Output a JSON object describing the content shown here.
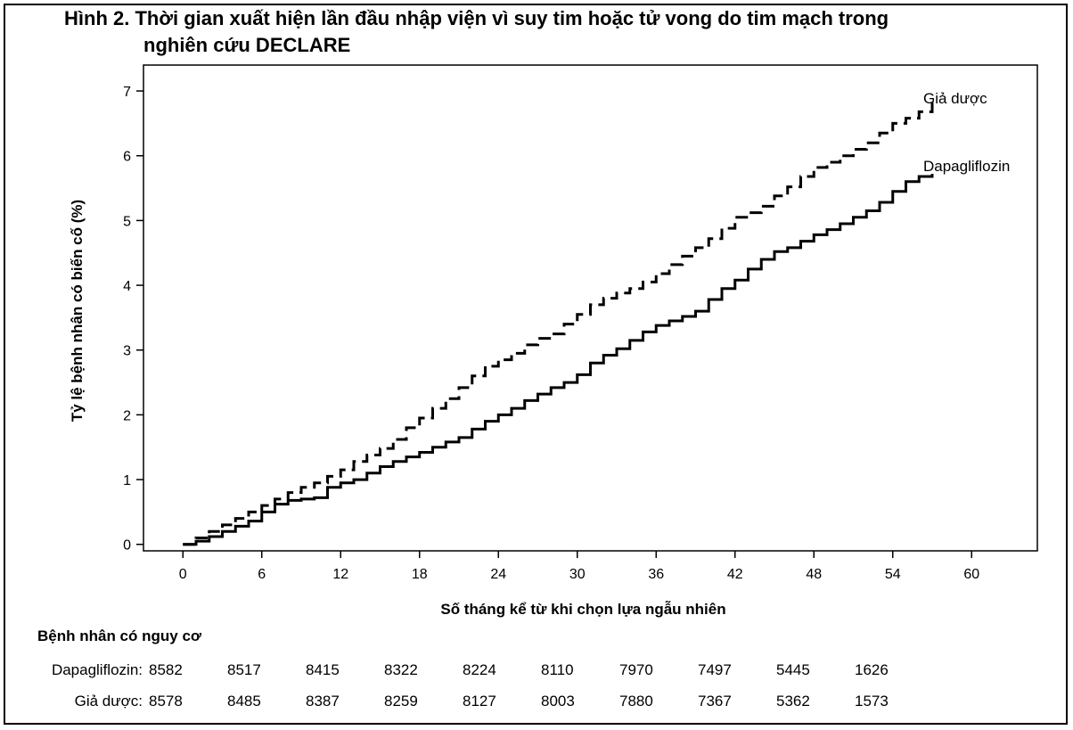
{
  "title_line1": "Hình 2. Thời gian xuất hiện lần đầu nhập viện vì suy tim hoặc tử vong do tim mạch trong",
  "title_line2": "nghiên cứu DECLARE",
  "chart_data": {
    "type": "line",
    "xlabel": "Số tháng kể từ khi chọn lựa ngẫu nhiên",
    "ylabel": "Tỷ lệ bệnh nhân có biến cố (%)",
    "xlim": [
      -3,
      65
    ],
    "ylim": [
      -0.1,
      7.4
    ],
    "x_ticks": [
      0,
      6,
      12,
      18,
      24,
      30,
      36,
      42,
      48,
      54,
      60
    ],
    "y_ticks": [
      0,
      1,
      2,
      3,
      4,
      5,
      6,
      7
    ],
    "grid": false,
    "legend": "labels at line ends",
    "series": [
      {
        "name": "Giả dược",
        "style": "dashed",
        "color": "#000000",
        "points": [
          [
            0,
            0
          ],
          [
            1,
            0.1
          ],
          [
            2,
            0.2
          ],
          [
            3,
            0.3
          ],
          [
            4,
            0.4
          ],
          [
            5,
            0.5
          ],
          [
            6,
            0.6
          ],
          [
            7,
            0.7
          ],
          [
            8,
            0.8
          ],
          [
            9,
            0.88
          ],
          [
            10,
            0.95
          ],
          [
            11,
            1.05
          ],
          [
            12,
            1.15
          ],
          [
            13,
            1.28
          ],
          [
            14,
            1.38
          ],
          [
            15,
            1.48
          ],
          [
            16,
            1.62
          ],
          [
            17,
            1.8
          ],
          [
            18,
            1.95
          ],
          [
            19,
            2.1
          ],
          [
            20,
            2.25
          ],
          [
            21,
            2.42
          ],
          [
            22,
            2.6
          ],
          [
            23,
            2.75
          ],
          [
            24,
            2.85
          ],
          [
            25,
            2.95
          ],
          [
            26,
            3.08
          ],
          [
            27,
            3.18
          ],
          [
            28,
            3.25
          ],
          [
            29,
            3.4
          ],
          [
            30,
            3.55
          ],
          [
            31,
            3.7
          ],
          [
            32,
            3.8
          ],
          [
            33,
            3.88
          ],
          [
            34,
            3.95
          ],
          [
            35,
            4.05
          ],
          [
            36,
            4.18
          ],
          [
            37,
            4.32
          ],
          [
            38,
            4.45
          ],
          [
            39,
            4.58
          ],
          [
            40,
            4.72
          ],
          [
            41,
            4.88
          ],
          [
            42,
            5.05
          ],
          [
            43,
            5.12
          ],
          [
            44,
            5.22
          ],
          [
            45,
            5.38
          ],
          [
            46,
            5.52
          ],
          [
            47,
            5.68
          ],
          [
            48,
            5.82
          ],
          [
            49,
            5.9
          ],
          [
            50,
            6.0
          ],
          [
            51,
            6.1
          ],
          [
            52,
            6.2
          ],
          [
            53,
            6.35
          ],
          [
            54,
            6.5
          ],
          [
            55,
            6.58
          ],
          [
            56,
            6.68
          ],
          [
            57,
            6.82
          ]
        ]
      },
      {
        "name": "Dapagliflozin",
        "style": "solid",
        "color": "#000000",
        "points": [
          [
            0,
            0
          ],
          [
            1,
            0.05
          ],
          [
            2,
            0.12
          ],
          [
            3,
            0.2
          ],
          [
            4,
            0.28
          ],
          [
            5,
            0.36
          ],
          [
            6,
            0.5
          ],
          [
            7,
            0.62
          ],
          [
            8,
            0.68
          ],
          [
            9,
            0.7
          ],
          [
            10,
            0.72
          ],
          [
            11,
            0.88
          ],
          [
            12,
            0.95
          ],
          [
            13,
            1.0
          ],
          [
            14,
            1.1
          ],
          [
            15,
            1.2
          ],
          [
            16,
            1.28
          ],
          [
            17,
            1.35
          ],
          [
            18,
            1.42
          ],
          [
            19,
            1.5
          ],
          [
            20,
            1.58
          ],
          [
            21,
            1.65
          ],
          [
            22,
            1.78
          ],
          [
            23,
            1.9
          ],
          [
            24,
            2.0
          ],
          [
            25,
            2.1
          ],
          [
            26,
            2.22
          ],
          [
            27,
            2.32
          ],
          [
            28,
            2.42
          ],
          [
            29,
            2.5
          ],
          [
            30,
            2.62
          ],
          [
            31,
            2.8
          ],
          [
            32,
            2.92
          ],
          [
            33,
            3.02
          ],
          [
            34,
            3.15
          ],
          [
            35,
            3.28
          ],
          [
            36,
            3.38
          ],
          [
            37,
            3.45
          ],
          [
            38,
            3.52
          ],
          [
            39,
            3.6
          ],
          [
            40,
            3.78
          ],
          [
            41,
            3.95
          ],
          [
            42,
            4.08
          ],
          [
            43,
            4.25
          ],
          [
            44,
            4.4
          ],
          [
            45,
            4.52
          ],
          [
            46,
            4.58
          ],
          [
            47,
            4.68
          ],
          [
            48,
            4.78
          ],
          [
            49,
            4.86
          ],
          [
            50,
            4.95
          ],
          [
            51,
            5.05
          ],
          [
            52,
            5.15
          ],
          [
            53,
            5.28
          ],
          [
            54,
            5.45
          ],
          [
            55,
            5.6
          ],
          [
            56,
            5.68
          ],
          [
            57,
            5.72
          ]
        ]
      }
    ],
    "line_labels": {
      "placebo": "Giả dược",
      "dapa": "Dapagliflozin"
    }
  },
  "risk_table": {
    "heading": "Bệnh nhân có nguy cơ",
    "rows": [
      {
        "label": "Dapagliflozin:",
        "values": [
          "8582",
          "8517",
          "8415",
          "8322",
          "8224",
          "8110",
          "7970",
          "7497",
          "5445",
          "1626"
        ]
      },
      {
        "label": "Giả dược:",
        "values": [
          "8578",
          "8485",
          "8387",
          "8259",
          "8127",
          "8003",
          "7880",
          "7367",
          "5362",
          "1573"
        ]
      }
    ]
  }
}
